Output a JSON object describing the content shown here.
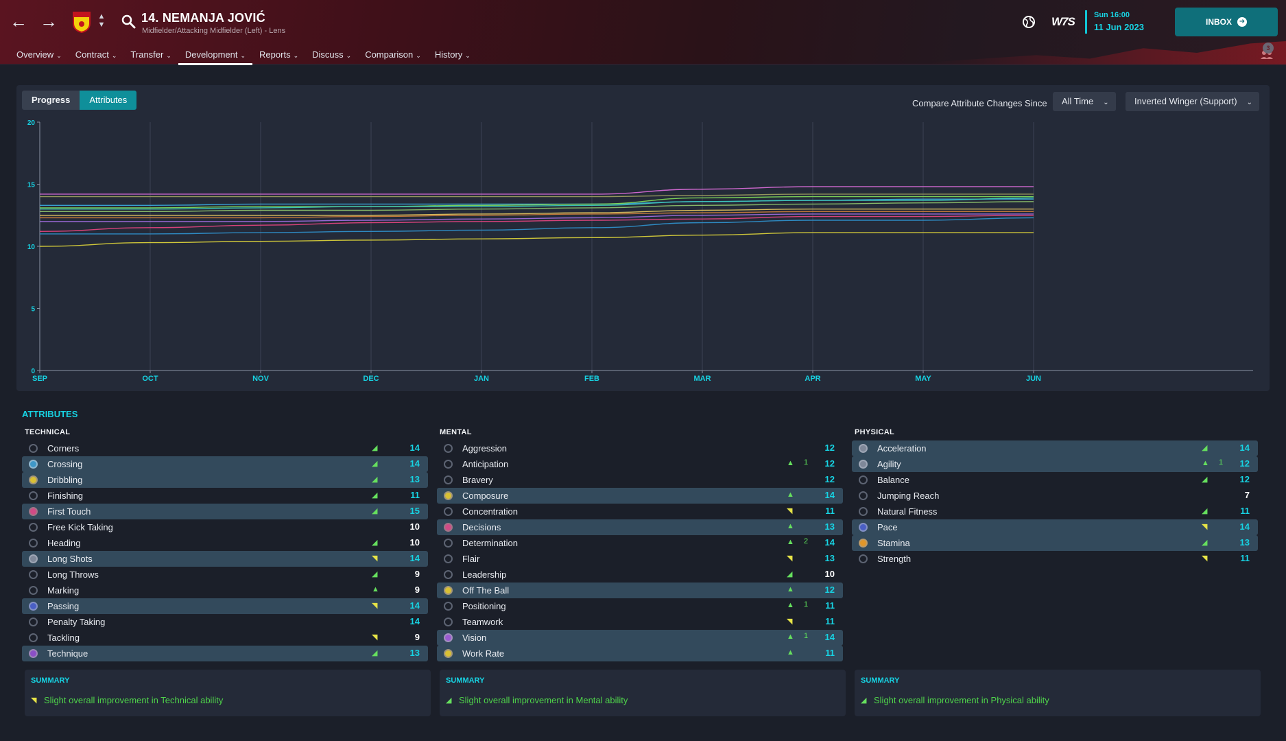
{
  "header": {
    "player_name": "14. NEMANJA JOVIĆ",
    "player_sub": "Midfielder/Attacking Midfielder (Left) - Lens",
    "date_day": "Sun 16:00",
    "date_full": "11 Jun 2023",
    "inbox_label": "INBOX",
    "brand": "W7S",
    "notifications": "3",
    "tabs": [
      "Overview",
      "Contract",
      "Transfer",
      "Development",
      "Reports",
      "Discuss",
      "Comparison",
      "History"
    ],
    "active_tab": "Development"
  },
  "controls": {
    "progress_label": "Progress",
    "attributes_label": "Attributes",
    "compare_label": "Compare Attribute Changes Since",
    "since_value": "All Time",
    "role_value": "Inverted Winger (Support)"
  },
  "chart_data": {
    "type": "line",
    "x": [
      "SEP",
      "OCT",
      "NOV",
      "DEC",
      "JAN",
      "FEB",
      "MAR",
      "APR",
      "MAY",
      "JUN"
    ],
    "ylim": [
      0,
      20
    ],
    "yticks": [
      0,
      5,
      10,
      15,
      20
    ],
    "grid": "vertical",
    "series": [
      {
        "color": "#d76bd6",
        "values": [
          14.2,
          14.2,
          14.2,
          14.2,
          14.2,
          14.2,
          14.6,
          14.8,
          14.8,
          14.8
        ]
      },
      {
        "color": "#9a9c5e",
        "values": [
          14.0,
          14.0,
          14.0,
          14.0,
          14.0,
          14.0,
          14.1,
          14.2,
          14.2,
          14.2
        ]
      },
      {
        "color": "#3aa6d9",
        "values": [
          13.3,
          13.3,
          13.4,
          13.4,
          13.4,
          13.4,
          13.6,
          13.7,
          13.8,
          13.8
        ]
      },
      {
        "color": "#7fd85a",
        "values": [
          13.1,
          13.1,
          13.2,
          13.2,
          13.3,
          13.4,
          13.9,
          14.0,
          14.0,
          14.0
        ]
      },
      {
        "color": "#3ec8b8",
        "values": [
          13.0,
          13.0,
          13.1,
          13.2,
          13.2,
          13.3,
          13.6,
          13.7,
          13.7,
          13.9
        ]
      },
      {
        "color": "#8cbf6a",
        "values": [
          12.8,
          12.8,
          12.9,
          12.9,
          13.0,
          13.1,
          13.3,
          13.4,
          13.5,
          13.6
        ]
      },
      {
        "color": "#e2c35e",
        "values": [
          12.5,
          12.5,
          12.5,
          12.5,
          12.6,
          12.7,
          12.9,
          13.0,
          13.0,
          13.0
        ]
      },
      {
        "color": "#c77a3a",
        "values": [
          12.3,
          12.3,
          12.3,
          12.4,
          12.5,
          12.6,
          12.7,
          12.8,
          12.8,
          12.8
        ]
      },
      {
        "color": "#9f6bdc",
        "values": [
          12.0,
          12.0,
          12.0,
          12.1,
          12.2,
          12.3,
          12.5,
          12.6,
          12.6,
          12.6
        ]
      },
      {
        "color": "#e2457e",
        "values": [
          11.2,
          11.5,
          11.7,
          11.9,
          12.0,
          12.1,
          12.2,
          12.4,
          12.4,
          12.5
        ]
      },
      {
        "color": "#2f8fc9",
        "values": [
          11.0,
          11.0,
          11.1,
          11.2,
          11.3,
          11.5,
          11.9,
          12.1,
          12.1,
          12.3
        ]
      },
      {
        "color": "#d8cf3a",
        "values": [
          10.0,
          10.3,
          10.4,
          10.5,
          10.6,
          10.7,
          10.9,
          11.1,
          11.1,
          11.1
        ]
      }
    ]
  },
  "attributes": {
    "title": "ATTRIBUTES",
    "technical": {
      "heading": "TECHNICAL",
      "rows": [
        {
          "label": "Corners",
          "trend": "◢",
          "trend_color": "green",
          "delta": "",
          "value": "14",
          "value_color": "cyan",
          "hl": false,
          "dot": ""
        },
        {
          "label": "Crossing",
          "trend": "◢",
          "trend_color": "green",
          "delta": "",
          "value": "14",
          "value_color": "cyan",
          "hl": true,
          "dot": "c-blue"
        },
        {
          "label": "Dribbling",
          "trend": "◢",
          "trend_color": "green",
          "delta": "",
          "value": "13",
          "value_color": "cyan",
          "hl": true,
          "dot": "c-yellow"
        },
        {
          "label": "Finishing",
          "trend": "◢",
          "trend_color": "green",
          "delta": "",
          "value": "11",
          "value_color": "cyan",
          "hl": false,
          "dot": ""
        },
        {
          "label": "First Touch",
          "trend": "◢",
          "trend_color": "green",
          "delta": "",
          "value": "15",
          "value_color": "cyan",
          "hl": true,
          "dot": "c-pink"
        },
        {
          "label": "Free Kick Taking",
          "trend": "",
          "trend_color": "green",
          "delta": "",
          "value": "10",
          "value_color": "white",
          "hl": false,
          "dot": ""
        },
        {
          "label": "Heading",
          "trend": "◢",
          "trend_color": "green",
          "delta": "",
          "value": "10",
          "value_color": "white",
          "hl": false,
          "dot": ""
        },
        {
          "label": "Long Shots",
          "trend": "◥",
          "trend_color": "yellow",
          "delta": "",
          "value": "14",
          "value_color": "cyan",
          "hl": true,
          "dot": "c-grey"
        },
        {
          "label": "Long Throws",
          "trend": "◢",
          "trend_color": "green",
          "delta": "",
          "value": "9",
          "value_color": "white",
          "hl": false,
          "dot": ""
        },
        {
          "label": "Marking",
          "trend": "▲",
          "trend_color": "green",
          "delta": "",
          "value": "9",
          "value_color": "white",
          "hl": false,
          "dot": ""
        },
        {
          "label": "Passing",
          "trend": "◥",
          "trend_color": "yellow",
          "delta": "",
          "value": "14",
          "value_color": "cyan",
          "hl": true,
          "dot": "c-indigo"
        },
        {
          "label": "Penalty Taking",
          "trend": "",
          "trend_color": "green",
          "delta": "",
          "value": "14",
          "value_color": "cyan",
          "hl": false,
          "dot": ""
        },
        {
          "label": "Tackling",
          "trend": "◥",
          "trend_color": "yellow",
          "delta": "",
          "value": "9",
          "value_color": "white",
          "hl": false,
          "dot": ""
        },
        {
          "label": "Technique",
          "trend": "◢",
          "trend_color": "green",
          "delta": "",
          "value": "13",
          "value_color": "cyan",
          "hl": true,
          "dot": "c-purple"
        }
      ]
    },
    "mental": {
      "heading": "MENTAL",
      "rows": [
        {
          "label": "Aggression",
          "trend": "",
          "trend_color": "green",
          "delta": "",
          "value": "12",
          "value_color": "cyan",
          "hl": false,
          "dot": ""
        },
        {
          "label": "Anticipation",
          "trend": "▲",
          "trend_color": "green",
          "delta": "1",
          "value": "12",
          "value_color": "cyan",
          "hl": false,
          "dot": ""
        },
        {
          "label": "Bravery",
          "trend": "",
          "trend_color": "green",
          "delta": "",
          "value": "12",
          "value_color": "cyan",
          "hl": false,
          "dot": ""
        },
        {
          "label": "Composure",
          "trend": "▲",
          "trend_color": "green",
          "delta": "",
          "value": "14",
          "value_color": "cyan",
          "hl": true,
          "dot": "c-yellow"
        },
        {
          "label": "Concentration",
          "trend": "◥",
          "trend_color": "yellow",
          "delta": "",
          "value": "11",
          "value_color": "cyan",
          "hl": false,
          "dot": ""
        },
        {
          "label": "Decisions",
          "trend": "▲",
          "trend_color": "green",
          "delta": "",
          "value": "13",
          "value_color": "cyan",
          "hl": true,
          "dot": "c-pink"
        },
        {
          "label": "Determination",
          "trend": "▲",
          "trend_color": "green",
          "delta": "2",
          "value": "14",
          "value_color": "cyan",
          "hl": false,
          "dot": ""
        },
        {
          "label": "Flair",
          "trend": "◥",
          "trend_color": "yellow",
          "delta": "",
          "value": "13",
          "value_color": "cyan",
          "hl": false,
          "dot": ""
        },
        {
          "label": "Leadership",
          "trend": "◢",
          "trend_color": "green",
          "delta": "",
          "value": "10",
          "value_color": "white",
          "hl": false,
          "dot": ""
        },
        {
          "label": "Off The Ball",
          "trend": "▲",
          "trend_color": "green",
          "delta": "",
          "value": "12",
          "value_color": "cyan",
          "hl": true,
          "dot": "c-yellow"
        },
        {
          "label": "Positioning",
          "trend": "▲",
          "trend_color": "green",
          "delta": "1",
          "value": "11",
          "value_color": "cyan",
          "hl": false,
          "dot": ""
        },
        {
          "label": "Teamwork",
          "trend": "◥",
          "trend_color": "yellow",
          "delta": "",
          "value": "11",
          "value_color": "cyan",
          "hl": false,
          "dot": ""
        },
        {
          "label": "Vision",
          "trend": "▲",
          "trend_color": "green",
          "delta": "1",
          "value": "14",
          "value_color": "cyan",
          "hl": true,
          "dot": "c-violet"
        },
        {
          "label": "Work Rate",
          "trend": "▲",
          "trend_color": "green",
          "delta": "",
          "value": "11",
          "value_color": "cyan",
          "hl": true,
          "dot": "c-yellow"
        }
      ]
    },
    "physical": {
      "heading": "PHYSICAL",
      "rows": [
        {
          "label": "Acceleration",
          "trend": "◢",
          "trend_color": "green",
          "delta": "",
          "value": "14",
          "value_color": "cyan",
          "hl": true,
          "dot": "c-grey"
        },
        {
          "label": "Agility",
          "trend": "▲",
          "trend_color": "green",
          "delta": "1",
          "value": "12",
          "value_color": "cyan",
          "hl": true,
          "dot": "c-grey"
        },
        {
          "label": "Balance",
          "trend": "◢",
          "trend_color": "green",
          "delta": "",
          "value": "12",
          "value_color": "cyan",
          "hl": false,
          "dot": ""
        },
        {
          "label": "Jumping Reach",
          "trend": "",
          "trend_color": "green",
          "delta": "",
          "value": "7",
          "value_color": "white",
          "hl": false,
          "dot": ""
        },
        {
          "label": "Natural Fitness",
          "trend": "◢",
          "trend_color": "green",
          "delta": "",
          "value": "11",
          "value_color": "cyan",
          "hl": false,
          "dot": ""
        },
        {
          "label": "Pace",
          "trend": "◥",
          "trend_color": "yellow",
          "delta": "",
          "value": "14",
          "value_color": "cyan",
          "hl": true,
          "dot": "c-indigo"
        },
        {
          "label": "Stamina",
          "trend": "◢",
          "trend_color": "green",
          "delta": "",
          "value": "13",
          "value_color": "cyan",
          "hl": true,
          "dot": "c-orange"
        },
        {
          "label": "Strength",
          "trend": "◥",
          "trend_color": "yellow",
          "delta": "",
          "value": "11",
          "value_color": "cyan",
          "hl": false,
          "dot": ""
        }
      ]
    }
  },
  "summary": {
    "heading": "SUMMARY",
    "technical": "Slight overall improvement in Technical ability",
    "mental": "Slight overall improvement in Mental ability",
    "physical": "Slight overall improvement in Physical ability"
  }
}
